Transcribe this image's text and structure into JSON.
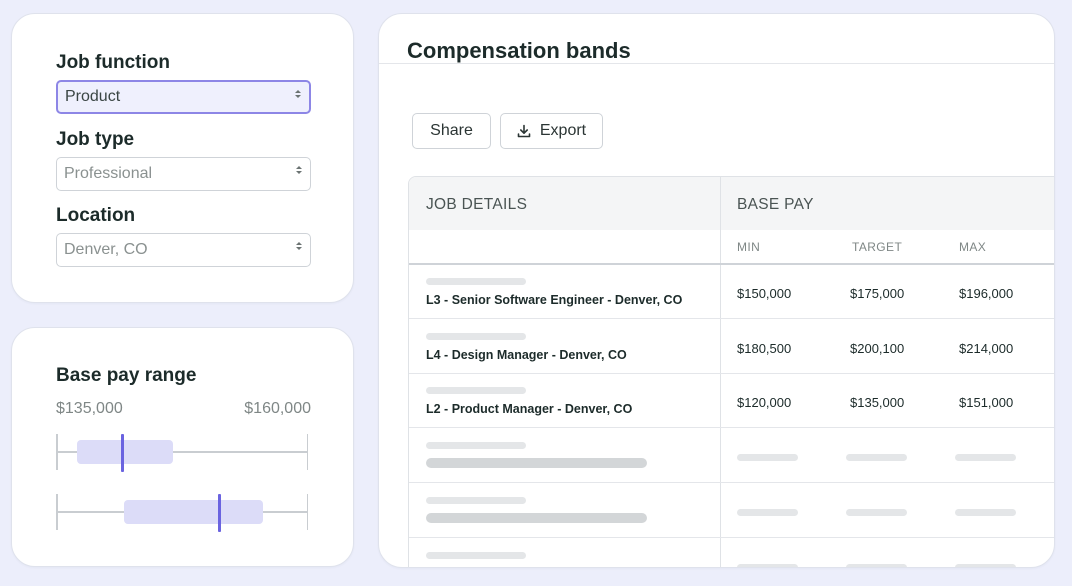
{
  "colors": {
    "background": "#eceefb",
    "accent": "#6a63e0",
    "band_fill": "#dcdcf8",
    "active_select_border": "#8d86e6"
  },
  "filters": {
    "job_function": {
      "label": "Job function",
      "value": "Product",
      "active": true
    },
    "job_type": {
      "label": "Job type",
      "value": "Professional"
    },
    "location": {
      "label": "Location",
      "value": "Denver, CO"
    }
  },
  "base_pay_range": {
    "title": "Base pay range",
    "min_label": "$135,000",
    "max_label": "$160,000"
  },
  "compensation": {
    "title": "Compensation bands",
    "share_label": "Share",
    "export_label": "Export",
    "export_icon": "download-icon",
    "table": {
      "col_job": "JOB DETAILS",
      "col_base": "BASE PAY",
      "sub_min": "MIN",
      "sub_target": "TARGET",
      "sub_max": "MAX",
      "rows": [
        {
          "name": "L3 - Senior Software Engineer - Denver, CO",
          "min": "$150,000",
          "target": "$175,000",
          "max": "$196,000"
        },
        {
          "name": "L4 - Design Manager - Denver, CO",
          "min": "$180,500",
          "target": "$200,100",
          "max": "$214,000"
        },
        {
          "name": "L2 - Product Manager - Denver, CO",
          "min": "$120,000",
          "target": "$135,000",
          "max": "$151,000"
        }
      ]
    }
  }
}
